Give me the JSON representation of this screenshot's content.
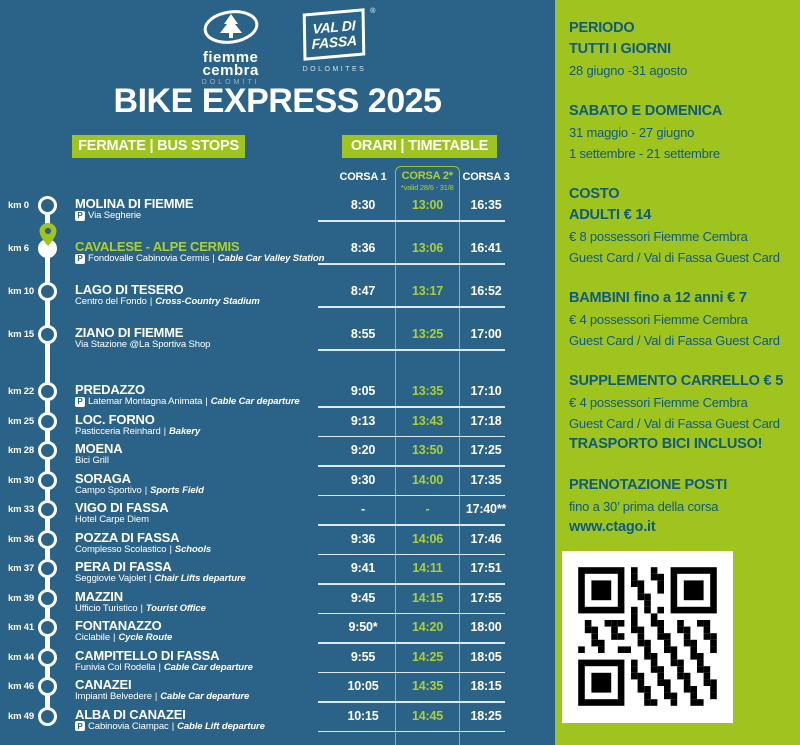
{
  "colors": {
    "blue": "#2B6388",
    "green": "#A0C41E",
    "acc": "#ACD02F",
    "textblue": "#0E5A80"
  },
  "header": {
    "logo_fiemme": {
      "line1": "fiemme",
      "line2": "cembra",
      "line3": "DOLOMITI"
    },
    "logo_fassa": {
      "line1": "VAL DI",
      "line2": "FASSA",
      "line3": "DOLOMITES",
      "reg": "®"
    },
    "title": "BIKE EXPRESS 2025",
    "stops_button": "FERMATE | BUS STOPS",
    "timetable_button": "ORARI | TIMETABLE",
    "col1": "CORSA 1",
    "col2": "CORSA 2*",
    "col2_note": "*valid 28/6 - 31/8",
    "col3": "CORSA 3"
  },
  "stops": [
    {
      "km": "km 0",
      "name": "MOLINA DI FIEMME",
      "p": true,
      "sub_it": "Via Segherie",
      "sub_en": "",
      "times": [
        "8:30",
        "13:00",
        "16:35"
      ],
      "highlight": false
    },
    {
      "km": "km 6",
      "name": "CAVALESE - ALPE CERMIS",
      "p": true,
      "sub_it": "Fondovalle Cabinovia Cermis",
      "sub_en": "Cable Car Valley Station",
      "times": [
        "8:36",
        "13:06",
        "16:41"
      ],
      "highlight": true
    },
    {
      "km": "km 10",
      "name": "LAGO DI TESERO",
      "p": false,
      "sub_it": "Centro del Fondo",
      "sub_en": "Cross-Country Stadium",
      "times": [
        "8:47",
        "13:17",
        "16:52"
      ],
      "highlight": false
    },
    {
      "km": "km 15",
      "name": "ZIANO DI FIEMME",
      "p": false,
      "sub_it": "Via Stazione @La Sportiva Shop",
      "sub_en": "",
      "times": [
        "8:55",
        "13:25",
        "17:00"
      ],
      "highlight": false
    },
    {
      "km": "km 22",
      "name": "PREDAZZO",
      "p": true,
      "sub_it": "Latemar Montagna Animata",
      "sub_en": "Cable Car departure",
      "times": [
        "9:05",
        "13:35",
        "17:10"
      ],
      "highlight": false
    },
    {
      "km": "km 25",
      "name": "LOC. FORNO",
      "p": false,
      "sub_it": "Pasticceria Reinhard",
      "sub_en": "Bakery",
      "times": [
        "9:13",
        "13:43",
        "17:18"
      ],
      "highlight": false
    },
    {
      "km": "km 28",
      "name": "MOENA",
      "p": false,
      "sub_it": "Bici Grill",
      "sub_en": "",
      "times": [
        "9:20",
        "13:50",
        "17:25"
      ],
      "highlight": false
    },
    {
      "km": "km 30",
      "name": "SORAGA",
      "p": false,
      "sub_it": "Campo Sportivo",
      "sub_en": "Sports Field",
      "times": [
        "9:30",
        "14:00",
        "17:35"
      ],
      "highlight": false
    },
    {
      "km": "km 33",
      "name": "VIGO DI FASSA",
      "p": false,
      "sub_it": "Hotel Carpe Diem",
      "sub_en": "",
      "times": [
        "-",
        "-",
        "17:40**"
      ],
      "highlight": false
    },
    {
      "km": "km 36",
      "name": "POZZA DI FASSA",
      "p": false,
      "sub_it": "Complesso Scolastico",
      "sub_en": "Schools",
      "times": [
        "9:36",
        "14:06",
        "17:46"
      ],
      "highlight": false
    },
    {
      "km": "km 37",
      "name": "PERA DI FASSA",
      "p": false,
      "sub_it": "Seggiovie Vajolet",
      "sub_en": "Chair Lifts departure",
      "times": [
        "9:41",
        "14:11",
        "17:51"
      ],
      "highlight": false
    },
    {
      "km": "km 39",
      "name": "MAZZIN",
      "p": false,
      "sub_it": "Ufficio Turistico",
      "sub_en": "Tourist Office",
      "times": [
        "9:45",
        "14:15",
        "17:55"
      ],
      "highlight": false
    },
    {
      "km": "km 41",
      "name": "FONTANAZZO",
      "p": false,
      "sub_it": "Ciclabile",
      "sub_en": "Cycle Route",
      "times": [
        "9:50*",
        "14:20",
        "18:00"
      ],
      "highlight": false
    },
    {
      "km": "km 44",
      "name": "CAMPITELLO DI FASSA",
      "p": false,
      "sub_it": "Funivia Col Rodella",
      "sub_en": "Cable Car departure",
      "times": [
        "9:55",
        "14:25",
        "18:05"
      ],
      "highlight": false
    },
    {
      "km": "km 46",
      "name": "CANAZEI",
      "p": false,
      "sub_it": "Impianti Belvedere",
      "sub_en": "Cable Car departure",
      "times": [
        "10:05",
        "14:35",
        "18:15"
      ],
      "highlight": false
    },
    {
      "km": "km 49",
      "name": "ALBA DI CANAZEI",
      "p": true,
      "sub_it": "Cabinovia Ciampac",
      "sub_en": "Cable Lift departure",
      "times": [
        "10:15",
        "14:45",
        "18:25"
      ],
      "highlight": false
    }
  ],
  "info": {
    "blocks": [
      {
        "lines": [
          {
            "t": "PERIODO",
            "b": 1
          },
          {
            "t": "TUTTI I GIORNI",
            "b": 1
          },
          {
            "t": "28 giugno -31 agosto",
            "b": 0
          }
        ]
      },
      {
        "lines": [
          {
            "t": "SABATO E DOMENICA",
            "b": 1
          },
          {
            "t": "31 maggio - 27 giugno",
            "b": 0
          },
          {
            "t": "1 settembre - 21 settembre",
            "b": 0
          }
        ]
      },
      {
        "lines": [
          {
            "t": "COSTO",
            "b": 1
          },
          {
            "t": "ADULTI € 14",
            "b": 1
          },
          {
            "t": "€ 8 possessori Fiemme Cembra",
            "b": 0
          },
          {
            "t": "Guest Card / Val di Fassa Guest Card",
            "b": 0
          }
        ]
      },
      {
        "lines": [
          {
            "t": "BAMBINI fino a 12 anni € 7",
            "b": 1
          },
          {
            "t": "€ 4 possessori  Fiemme Cembra",
            "b": 0
          },
          {
            "t": "Guest Card / Val di Fassa Guest Card",
            "b": 0
          }
        ]
      },
      {
        "lines": [
          {
            "t": "SUPPLEMENTO CARRELLO € 5",
            "b": 1
          },
          {
            "t": "€ 4 possessori  Fiemme  Cembra",
            "b": 0
          },
          {
            "t": "Guest Card / Val di Fassa Guest Card",
            "b": 0
          },
          {
            "t": "TRASPORTO BICI INCLUSO!",
            "b": 1
          }
        ]
      },
      {
        "lines": [
          {
            "t": "PRENOTAZIONE POSTI",
            "b": 1
          },
          {
            "t": "fino a 30’ prima della corsa",
            "b": 0
          },
          {
            "t": "www.ctago.it",
            "b": 1,
            "link": 1
          }
        ]
      }
    ]
  }
}
